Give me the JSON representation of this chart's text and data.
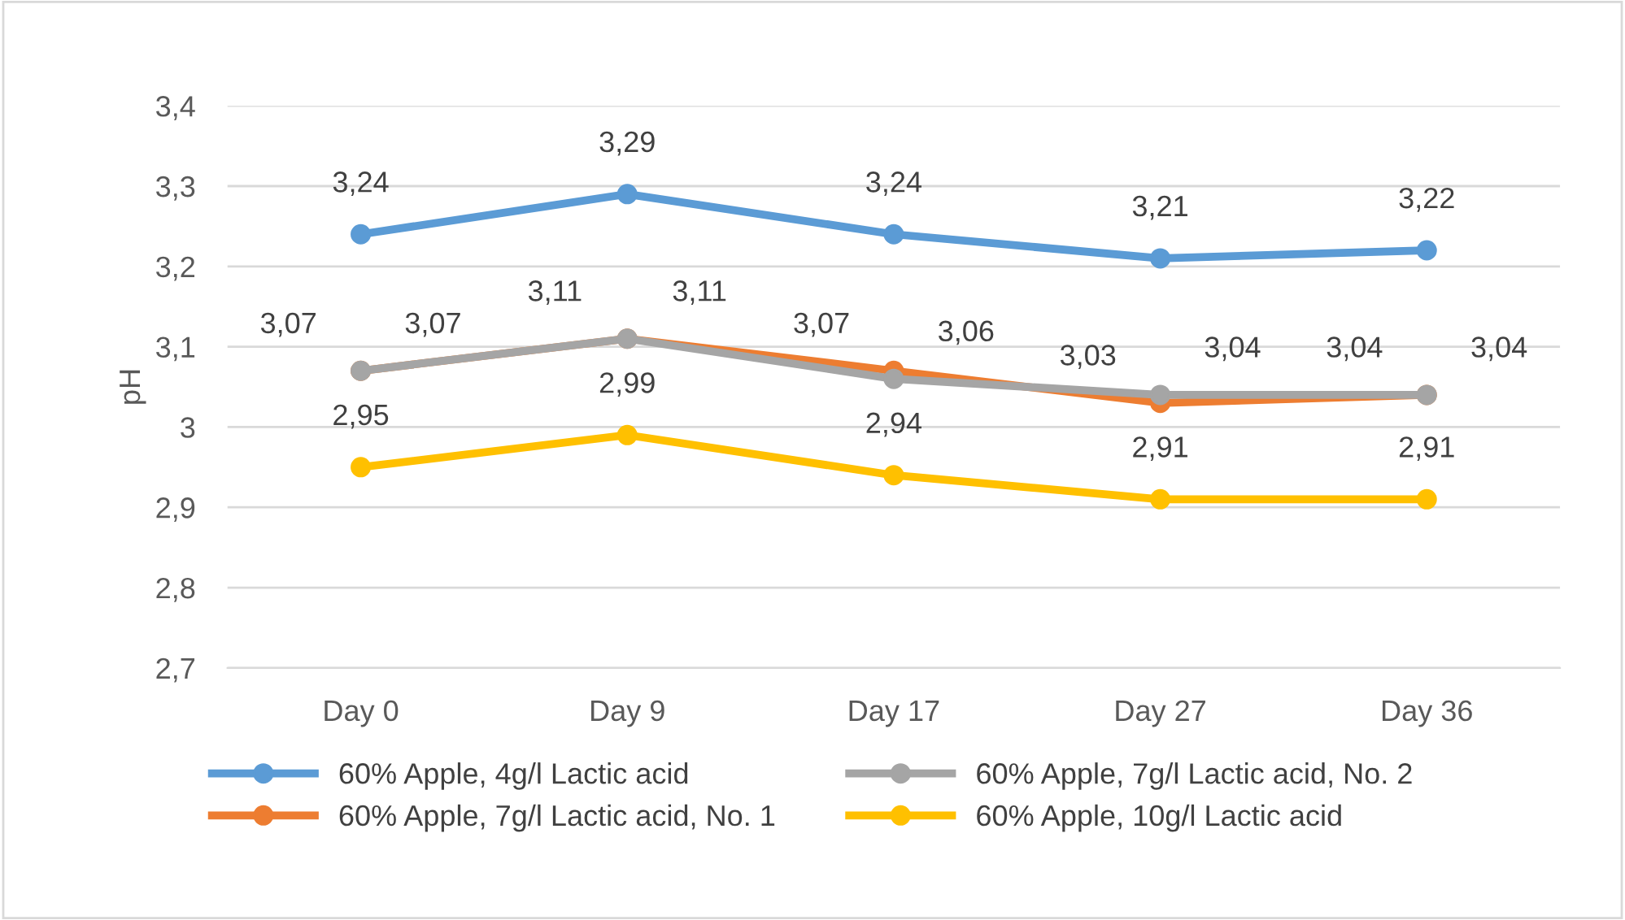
{
  "chart_data": {
    "type": "line",
    "ylabel": "pH",
    "categories": [
      "Day 0",
      "Day 9",
      "Day 17",
      "Day 27",
      "Day 36"
    ],
    "series": [
      {
        "name": "60% Apple, 4g/l Lactic acid",
        "color": "#5b9bd5",
        "values": [
          3.24,
          3.29,
          3.24,
          3.21,
          3.22
        ],
        "value_labels": [
          "3,24",
          "3,29",
          "3,24",
          "3,21",
          "3,22"
        ]
      },
      {
        "name": "60% Apple, 7g/l Lactic acid, No. 1",
        "color": "#ed7d31",
        "values": [
          3.07,
          3.11,
          3.07,
          3.03,
          3.04
        ],
        "value_labels": [
          "3,07",
          "3,11",
          "3,07",
          "3,03",
          "3,04"
        ]
      },
      {
        "name": "60% Apple, 7g/l Lactic acid, No. 2",
        "color": "#a5a5a5",
        "values": [
          3.07,
          3.11,
          3.06,
          3.04,
          3.04
        ],
        "value_labels": [
          "3,07",
          "3,11",
          "3,06",
          "3,04",
          "3,04"
        ]
      },
      {
        "name": "60% Apple, 10g/l Lactic acid",
        "color": "#ffc000",
        "values": [
          2.95,
          2.99,
          2.94,
          2.91,
          2.91
        ],
        "value_labels": [
          "2,95",
          "2,99",
          "2,94",
          "2,91",
          "2,91"
        ]
      }
    ],
    "ylim": [
      2.7,
      3.4
    ],
    "yticks": [
      {
        "value": 2.7,
        "label": "2,7"
      },
      {
        "value": 2.8,
        "label": "2,8"
      },
      {
        "value": 2.9,
        "label": "2,9"
      },
      {
        "value": 3.0,
        "label": "3"
      },
      {
        "value": 3.1,
        "label": "3,1"
      },
      {
        "value": 3.2,
        "label": "3,2"
      },
      {
        "value": 3.3,
        "label": "3,3"
      },
      {
        "value": 3.4,
        "label": "3,4"
      }
    ],
    "grid": "y",
    "legend": "bottom",
    "marker": "circle",
    "line_style": "solid"
  }
}
